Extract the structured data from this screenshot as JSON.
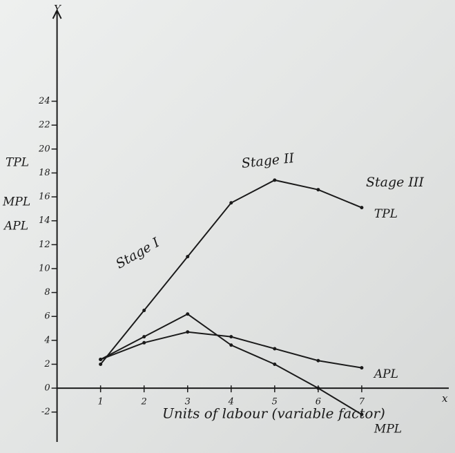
{
  "chart_data": {
    "type": "line",
    "x_axis_letter": "x",
    "y_axis_letter": "Y",
    "xlabel": "Units of labour (variable factor)",
    "y_axis_labels": [
      "TPL",
      "MPL",
      "APL"
    ],
    "annotations": [
      "Stage I",
      "Stage II",
      "Stage III"
    ],
    "x": [
      1,
      2,
      3,
      4,
      5,
      6,
      7
    ],
    "series": [
      {
        "name": "TPL",
        "color": "#1a1a1a",
        "values": [
          2,
          6.5,
          11,
          15.5,
          17.4,
          16.6,
          15.1
        ]
      },
      {
        "name": "APL",
        "color": "#1a1a1a",
        "values": [
          2.4,
          3.8,
          4.7,
          4.3,
          3.3,
          2.3,
          1.7
        ]
      },
      {
        "name": "MPL",
        "color": "#1a1a1a",
        "values": [
          2.4,
          4.3,
          6.2,
          3.6,
          2,
          0,
          -2.2
        ]
      }
    ],
    "xlim": [
      -0.2,
      9
    ],
    "ylim": [
      -4.5,
      31.6
    ],
    "xticks": [
      1,
      2,
      3,
      4,
      5,
      6,
      7
    ],
    "yticks": [
      -2,
      0,
      2,
      4,
      6,
      8,
      10,
      12,
      14,
      16,
      18,
      20,
      22,
      24
    ],
    "grid": false
  }
}
